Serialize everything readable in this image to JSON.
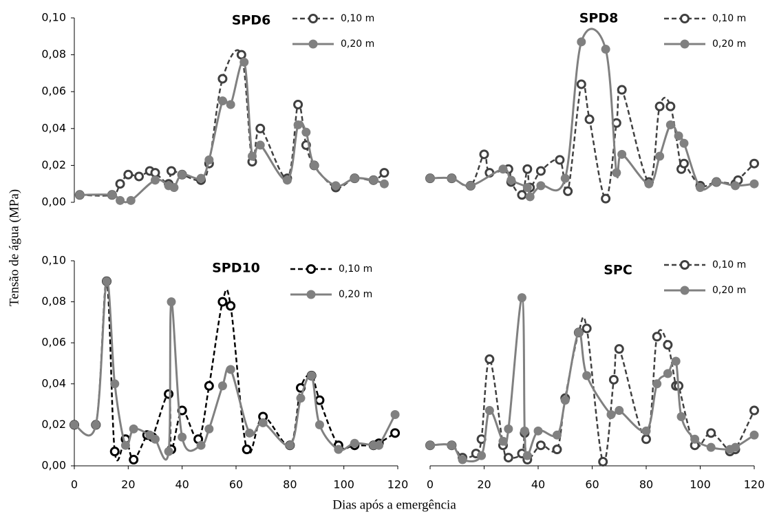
{
  "y_axis_label": "Tensão de água (MPa)",
  "x_axis_label": "Dias após a emergência",
  "chart_data": [
    {
      "type": "line",
      "title": "SPD6",
      "legend": "upper right",
      "xlim": [
        0,
        120
      ],
      "ylim": [
        0,
        0.1
      ],
      "yticks": [
        {
          "value": 0,
          "label": "0,00"
        },
        {
          "value": 0.02,
          "label": "0,02"
        },
        {
          "value": 0.04,
          "label": "0,04"
        },
        {
          "value": 0.06,
          "label": "0,06"
        },
        {
          "value": 0.08,
          "label": "0,08"
        },
        {
          "value": 0.1,
          "label": "0,10"
        }
      ],
      "series": [
        {
          "name": "0,10 m",
          "color": "#404040",
          "line_style": "dashed",
          "marker": "open",
          "x": [
            2,
            14,
            17,
            20,
            24,
            28,
            30,
            35,
            36,
            40,
            47,
            50,
            55,
            62,
            66,
            69,
            79,
            83,
            86,
            89,
            97,
            104,
            111,
            115
          ],
          "values": [
            0.004,
            0.004,
            0.01,
            0.015,
            0.014,
            0.017,
            0.016,
            0.01,
            0.017,
            0.015,
            0.012,
            0.021,
            0.067,
            0.08,
            0.022,
            0.04,
            0.013,
            0.053,
            0.031,
            0.02,
            0.008,
            0.013,
            0.012,
            0.016
          ]
        },
        {
          "name": "0,20 m",
          "color": "#808080",
          "line_style": "solid",
          "marker": "filled",
          "x": [
            2,
            14,
            17,
            21,
            30,
            35,
            37,
            40,
            47,
            50,
            55,
            58,
            63,
            66,
            69,
            79,
            83,
            86,
            89,
            97,
            104,
            111,
            115
          ],
          "values": [
            0.004,
            0.004,
            0.001,
            0.001,
            0.012,
            0.009,
            0.008,
            0.015,
            0.013,
            0.023,
            0.055,
            0.053,
            0.076,
            0.025,
            0.031,
            0.012,
            0.042,
            0.038,
            0.02,
            0.009,
            0.013,
            0.012,
            0.01
          ]
        }
      ]
    },
    {
      "type": "line",
      "title": "SPD8",
      "legend": "upper right",
      "xlim": [
        0,
        120
      ],
      "ylim": [
        0,
        0.1
      ],
      "series": [
        {
          "name": "0,10 m",
          "color": "#404040",
          "line_style": "dashed",
          "marker": "open",
          "x": [
            0,
            8,
            15,
            20,
            22,
            29,
            30,
            34,
            36,
            37,
            41,
            48,
            51,
            56,
            59,
            65,
            69,
            71,
            81,
            85,
            89,
            93,
            94,
            100,
            106,
            113,
            114,
            120
          ],
          "values": [
            0.013,
            0.013,
            0.009,
            0.026,
            0.016,
            0.018,
            0.011,
            0.004,
            0.018,
            0.008,
            0.017,
            0.023,
            0.006,
            0.064,
            0.045,
            0.002,
            0.043,
            0.061,
            0.011,
            0.052,
            0.052,
            0.018,
            0.021,
            0.009,
            0.011,
            0.01,
            0.012,
            0.021
          ]
        },
        {
          "name": "0,20 m",
          "color": "#808080",
          "line_style": "solid",
          "marker": "filled",
          "x": [
            0,
            8,
            15,
            27,
            30,
            36,
            37,
            41,
            50,
            56,
            65,
            69,
            71,
            81,
            85,
            89,
            92,
            94,
            100,
            106,
            113,
            120
          ],
          "values": [
            0.013,
            0.013,
            0.009,
            0.018,
            0.012,
            0.008,
            0.003,
            0.009,
            0.013,
            0.087,
            0.083,
            0.016,
            0.026,
            0.01,
            0.025,
            0.042,
            0.036,
            0.032,
            0.008,
            0.011,
            0.009,
            0.01
          ]
        }
      ]
    },
    {
      "type": "line",
      "title": "SPD10",
      "legend": "upper right",
      "xlim": [
        0,
        120
      ],
      "ylim": [
        0,
        0.1
      ],
      "xticks": [
        0,
        20,
        40,
        60,
        80,
        100,
        120
      ],
      "yticks": [
        {
          "value": 0,
          "label": "0,00"
        },
        {
          "value": 0.02,
          "label": "0,02"
        },
        {
          "value": 0.04,
          "label": "0,04"
        },
        {
          "value": 0.06,
          "label": "0,06"
        },
        {
          "value": 0.08,
          "label": "0,08"
        },
        {
          "value": 0.1,
          "label": "0,10"
        }
      ],
      "series": [
        {
          "name": "0,10 m",
          "color": "#000000",
          "line_style": "dashed",
          "marker": "open",
          "x": [
            0,
            8,
            12,
            15,
            19,
            22,
            27,
            29,
            35,
            36,
            40,
            46,
            50,
            55,
            58,
            64,
            70,
            80,
            84,
            88,
            91,
            98,
            104,
            111,
            113,
            119
          ],
          "values": [
            0.02,
            0.02,
            0.09,
            0.007,
            0.013,
            0.003,
            0.015,
            0.014,
            0.035,
            0.008,
            0.027,
            0.013,
            0.039,
            0.08,
            0.078,
            0.008,
            0.024,
            0.01,
            0.038,
            0.044,
            0.032,
            0.01,
            0.01,
            0.01,
            0.011,
            0.016
          ]
        },
        {
          "name": "0,20 m",
          "color": "#808080",
          "line_style": "solid",
          "marker": "filled",
          "x": [
            0,
            8,
            12,
            15,
            19,
            22,
            28,
            30,
            35,
            36,
            40,
            47,
            50,
            55,
            58,
            65,
            70,
            80,
            84,
            88,
            91,
            98,
            104,
            111,
            113,
            119
          ],
          "values": [
            0.02,
            0.02,
            0.09,
            0.04,
            0.01,
            0.018,
            0.015,
            0.013,
            0.007,
            0.08,
            0.014,
            0.01,
            0.018,
            0.039,
            0.047,
            0.016,
            0.021,
            0.01,
            0.033,
            0.044,
            0.02,
            0.008,
            0.011,
            0.01,
            0.01,
            0.025
          ]
        }
      ]
    },
    {
      "type": "line",
      "title": "SPC",
      "legend": "upper right",
      "xlim": [
        0,
        120
      ],
      "ylim": [
        0,
        0.1
      ],
      "xticks": [
        0,
        20,
        40,
        60,
        80,
        100,
        120
      ],
      "series": [
        {
          "name": "0,10 m",
          "color": "#404040",
          "line_style": "dashed",
          "marker": "open",
          "x": [
            0,
            8,
            12,
            17,
            19,
            22,
            27,
            29,
            34,
            35,
            36,
            41,
            47,
            50,
            55,
            58,
            64,
            68,
            70,
            80,
            84,
            88,
            91,
            92,
            98,
            104,
            111,
            113,
            120
          ],
          "values": [
            0.01,
            0.01,
            0.004,
            0.006,
            0.013,
            0.052,
            0.01,
            0.004,
            0.006,
            0.016,
            0.003,
            0.01,
            0.008,
            0.033,
            0.065,
            0.067,
            0.002,
            0.042,
            0.057,
            0.013,
            0.063,
            0.059,
            0.039,
            0.039,
            0.01,
            0.016,
            0.007,
            0.008,
            0.027
          ]
        },
        {
          "name": "0,20 m",
          "color": "#808080",
          "line_style": "solid",
          "marker": "filled",
          "x": [
            0,
            8,
            12,
            19,
            22,
            27,
            29,
            34,
            35,
            36,
            40,
            47,
            50,
            55,
            58,
            67,
            70,
            80,
            84,
            88,
            91,
            93,
            98,
            104,
            111,
            113,
            120
          ],
          "values": [
            0.01,
            0.01,
            0.003,
            0.005,
            0.027,
            0.012,
            0.018,
            0.082,
            0.017,
            0.005,
            0.017,
            0.015,
            0.032,
            0.065,
            0.044,
            0.025,
            0.027,
            0.017,
            0.04,
            0.045,
            0.051,
            0.024,
            0.013,
            0.009,
            0.008,
            0.009,
            0.015
          ]
        }
      ]
    }
  ]
}
